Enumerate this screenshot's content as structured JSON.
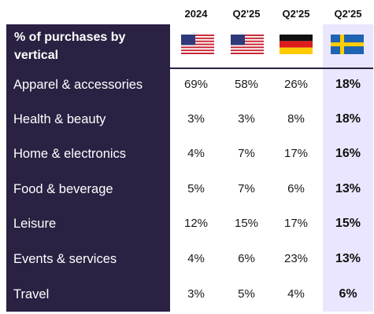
{
  "header": {
    "title": "% of purchases by vertical",
    "columns": [
      {
        "label": "2024",
        "flag": "us-flag-icon"
      },
      {
        "label": "Q2'25",
        "flag": "us-flag-icon"
      },
      {
        "label": "Q2'25",
        "flag": "germany-flag-icon"
      },
      {
        "label": "Q2'25",
        "flag": "sweden-flag-icon"
      }
    ]
  },
  "colors": {
    "label_bg": "#2b2143",
    "highlight_bg": "#ebe6ff"
  },
  "rows": [
    {
      "label": "Apparel & accessories",
      "values": [
        "69%",
        "58%",
        "26%",
        "18%"
      ]
    },
    {
      "label": "Health & beauty",
      "values": [
        "3%",
        "3%",
        "8%",
        "18%"
      ]
    },
    {
      "label": "Home & electronics",
      "values": [
        "4%",
        "7%",
        "17%",
        "16%"
      ]
    },
    {
      "label": "Food & beverage",
      "values": [
        "5%",
        "7%",
        "6%",
        "13%"
      ]
    },
    {
      "label": "Leisure",
      "values": [
        "12%",
        "15%",
        "17%",
        "15%"
      ]
    },
    {
      "label": "Events & services",
      "values": [
        "4%",
        "6%",
        "23%",
        "13%"
      ]
    },
    {
      "label": "Travel",
      "values": [
        "3%",
        "5%",
        "4%",
        "6%"
      ]
    }
  ]
}
